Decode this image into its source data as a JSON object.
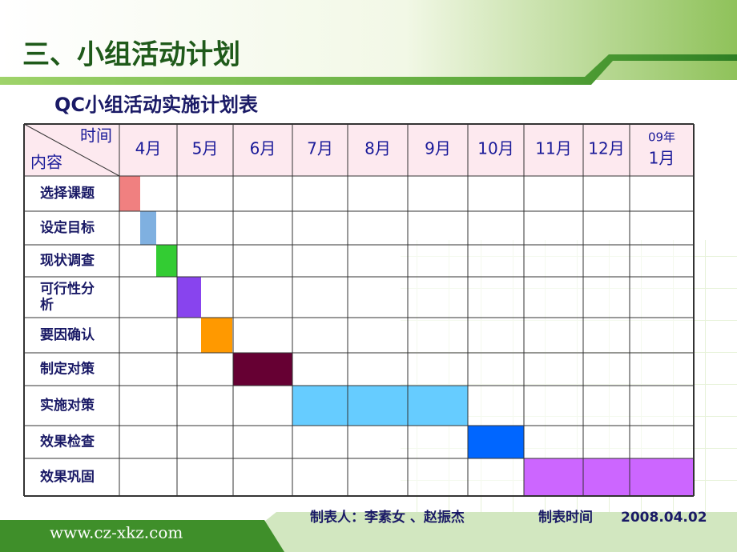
{
  "header": {
    "title": "三、小组活动计划",
    "subtitle": "QC小组活动实施计划表"
  },
  "table": {
    "corner_top": "时间",
    "corner_bottom": "内容",
    "months": [
      "4月",
      "5月",
      "6月",
      "7月",
      "8月",
      "9月",
      "10月",
      "11月",
      "12月",
      [
        "09年",
        "1月"
      ]
    ],
    "rows": [
      "选择课题",
      "设定目标",
      "现状调查",
      "可行性分析",
      "要因确认",
      "制定对策",
      "实施对策",
      "效果检查",
      "效果巩固"
    ]
  },
  "footer": {
    "author": "制表人：李素女 、赵振杰",
    "date_label": "制表时间",
    "date": "2008.04.02",
    "url": "www.cz-xkz.com"
  }
}
